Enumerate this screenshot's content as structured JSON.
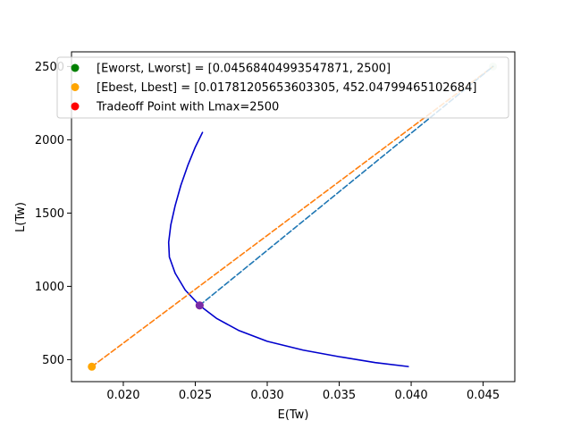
{
  "chart_data": {
    "type": "line",
    "xlabel": "E(Tw)",
    "ylabel": "L(Tw)",
    "xlim": [
      0.0164,
      0.0472
    ],
    "ylim": [
      350,
      2600
    ],
    "xticks": [
      0.02,
      0.025,
      0.03,
      0.035,
      0.04,
      0.045
    ],
    "xtick_labels": [
      "0.020",
      "0.025",
      "0.030",
      "0.035",
      "0.040",
      "0.045"
    ],
    "yticks": [
      500,
      1000,
      1500,
      2000,
      2500
    ],
    "ytick_labels": [
      "500",
      "1000",
      "1500",
      "2000",
      "2500"
    ],
    "grid": false,
    "legend_position": "top-left",
    "legend": [
      {
        "label": "[Eworst, Lworst] = [0.04568404993547871, 2500]",
        "color": "#008000"
      },
      {
        "label": "[Ebest, Lbest] = [0.01781205653603305, 452.04799465102684]",
        "color": "#ffa500"
      },
      {
        "label": "Tradeoff Point with Lmax=2500",
        "color": "#ff0000"
      }
    ],
    "series": [
      {
        "kind": "curve",
        "color": "#0000cd",
        "style": "solid",
        "points": [
          [
            0.0255,
            2050
          ],
          [
            0.025,
            1950
          ],
          [
            0.0245,
            1830
          ],
          [
            0.024,
            1690
          ],
          [
            0.0236,
            1550
          ],
          [
            0.0233,
            1420
          ],
          [
            0.02315,
            1300
          ],
          [
            0.0232,
            1200
          ],
          [
            0.0236,
            1090
          ],
          [
            0.0243,
            975
          ],
          [
            0.0253,
            870
          ],
          [
            0.0265,
            780
          ],
          [
            0.028,
            700
          ],
          [
            0.03,
            625
          ],
          [
            0.0325,
            565
          ],
          [
            0.035,
            520
          ],
          [
            0.0375,
            480
          ],
          [
            0.0398,
            453
          ]
        ]
      },
      {
        "kind": "line",
        "color": "#ff7f0e",
        "style": "dashed",
        "points": [
          [
            0.01781205653603305,
            452.04799465102684
          ],
          [
            0.04568404993547871,
            2500
          ]
        ]
      },
      {
        "kind": "line",
        "color": "#1f77b4",
        "style": "dashed",
        "points": [
          [
            0.0253,
            870
          ],
          [
            0.04568404993547871,
            2500
          ]
        ]
      }
    ],
    "points": [
      {
        "name": "worst",
        "x": 0.04568404993547871,
        "y": 2500,
        "color": "#008000",
        "alpha": 0.18
      },
      {
        "name": "best",
        "x": 0.01781205653603305,
        "y": 452.04799465102684,
        "color": "#ffa500",
        "alpha": 1
      },
      {
        "name": "tradeoff-red",
        "x": 0.0253,
        "y": 870,
        "color": "#ff0000",
        "alpha": 1
      },
      {
        "name": "tradeoff-blue",
        "x": 0.0253,
        "y": 870,
        "color": "#4b3ae0",
        "alpha": 0.75
      }
    ]
  }
}
